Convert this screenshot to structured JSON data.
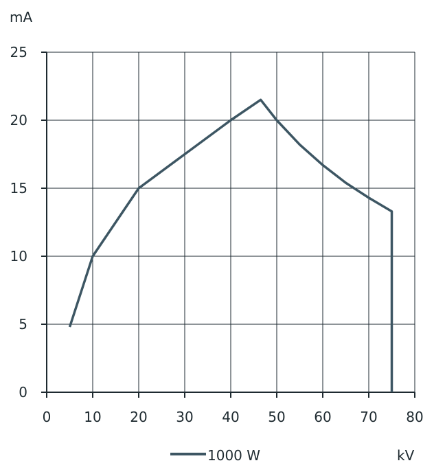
{
  "chart_data": {
    "type": "line",
    "title": "",
    "xlabel": "kV",
    "ylabel": "mA",
    "xlim": [
      0,
      80
    ],
    "ylim": [
      0,
      25
    ],
    "xticks": [
      0,
      10,
      20,
      30,
      40,
      50,
      60,
      70,
      80
    ],
    "yticks": [
      0,
      5,
      10,
      15,
      20,
      25
    ],
    "grid": true,
    "legend_position": "bottom",
    "series": [
      {
        "name": "1000 W",
        "color": "#3d5663",
        "x": [
          5,
          10,
          20,
          30,
          40,
          46.5,
          50,
          55,
          60,
          65,
          70,
          75,
          75
        ],
        "y": [
          4.8,
          10,
          15,
          17.5,
          20,
          21.5,
          20,
          18.2,
          16.7,
          15.4,
          14.3,
          13.3,
          0
        ]
      }
    ]
  }
}
